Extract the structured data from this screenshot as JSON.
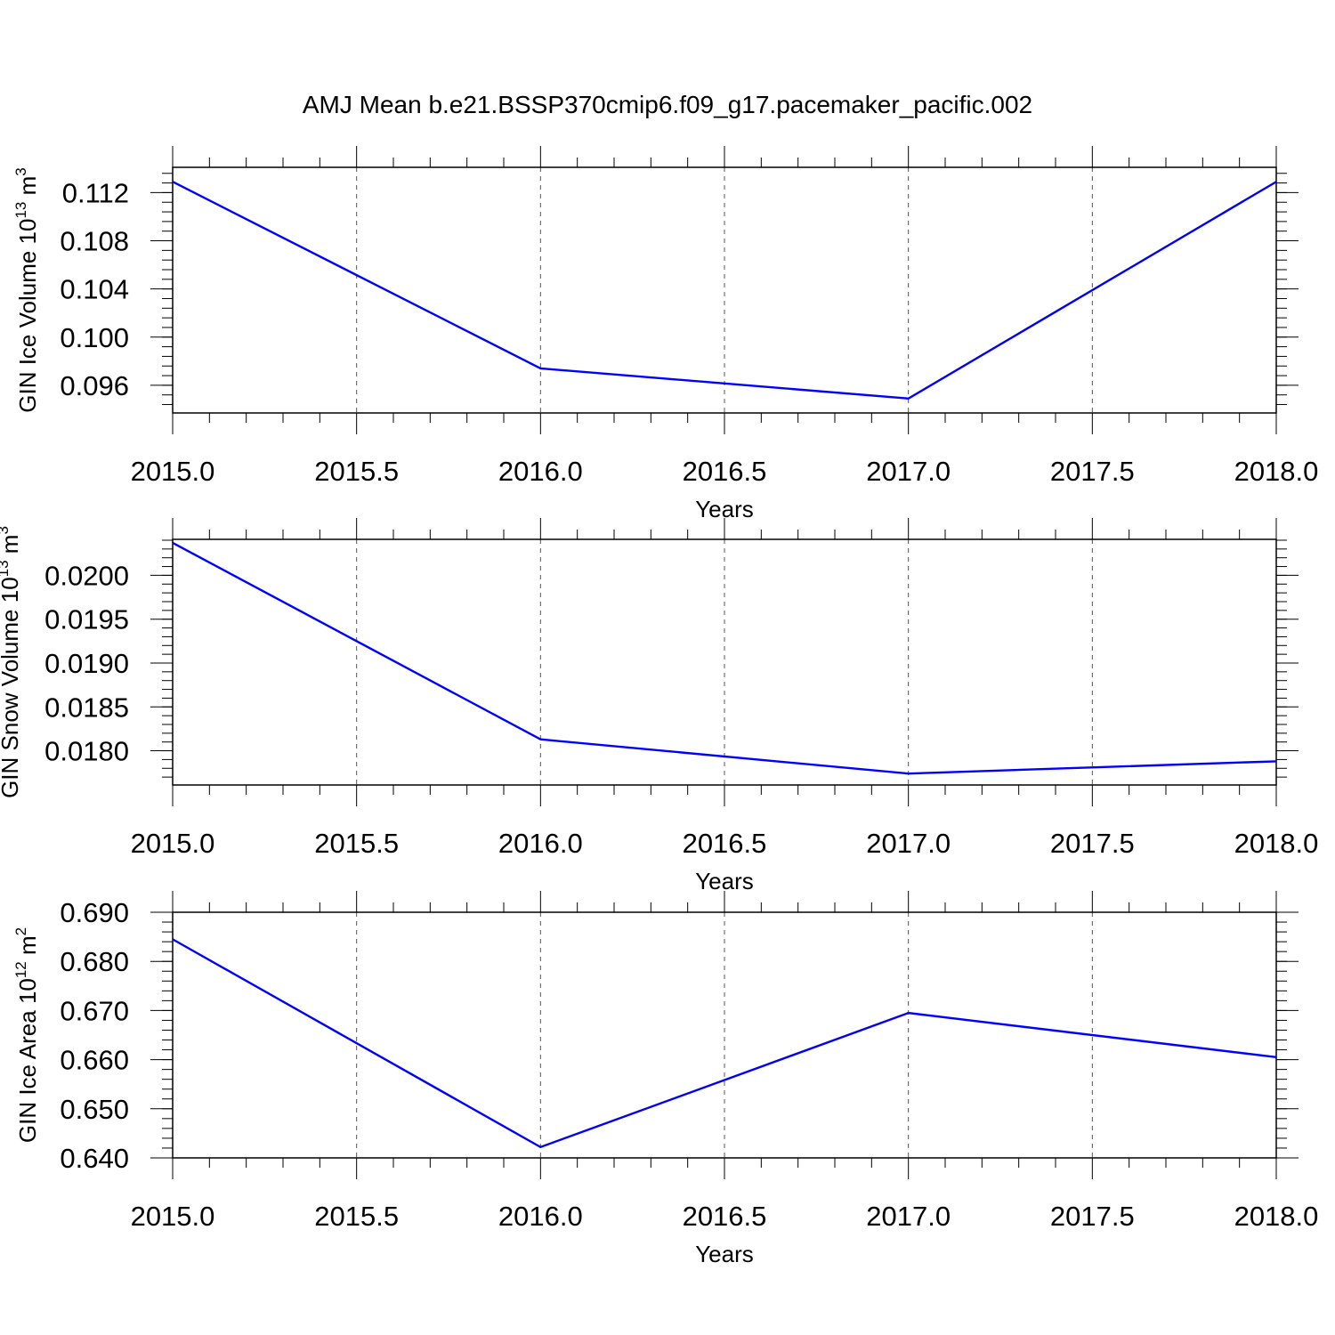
{
  "title": "AMJ Mean b.e21.BSSP370cmip6.f09_g17.pacemaker_pacific.002",
  "line_color": "#0000ff",
  "chart_data": [
    {
      "type": "line",
      "xlabel": "Years",
      "ylabel": {
        "text": "GIN Ice Volume 10",
        "sup1": "13",
        "mid": " m",
        "sup2": "3"
      },
      "xlim": [
        2015.0,
        2018.0
      ],
      "ylim": [
        0.0937,
        0.1141
      ],
      "xticks": [
        2015.0,
        2015.5,
        2016.0,
        2016.5,
        2017.0,
        2017.5,
        2018.0
      ],
      "xtick_labels": [
        "2015.0",
        "2015.5",
        "2016.0",
        "2016.5",
        "2017.0",
        "2017.5",
        "2018.0"
      ],
      "yticks": [
        0.096,
        0.1,
        0.104,
        0.108,
        0.112
      ],
      "ytick_labels": [
        "0.096",
        "0.100",
        "0.104",
        "0.108",
        "0.112"
      ],
      "y_minor_step": 0.0008,
      "grid": "vertical dashed at major x ticks",
      "x": [
        2015.0,
        2016.0,
        2017.0,
        2018.0
      ],
      "y": [
        0.1129,
        0.0974,
        0.0949,
        0.1129
      ]
    },
    {
      "type": "line",
      "xlabel": "Years",
      "ylabel": {
        "text": "GIN Snow Volume 10",
        "sup1": "13",
        "mid": " m",
        "sup2": "3"
      },
      "xlim": [
        2015.0,
        2018.0
      ],
      "ylim": [
        0.01761,
        0.02041
      ],
      "xticks": [
        2015.0,
        2015.5,
        2016.0,
        2016.5,
        2017.0,
        2017.5,
        2018.0
      ],
      "xtick_labels": [
        "2015.0",
        "2015.5",
        "2016.0",
        "2016.5",
        "2017.0",
        "2017.5",
        "2018.0"
      ],
      "yticks": [
        0.018,
        0.0185,
        0.019,
        0.0195,
        0.02
      ],
      "ytick_labels": [
        "0.0180",
        "0.0185",
        "0.0190",
        "0.0195",
        "0.0200"
      ],
      "y_minor_step": 0.0001,
      "grid": "vertical dashed at major x ticks",
      "x": [
        2015.0,
        2016.0,
        2017.0,
        2018.0
      ],
      "y": [
        0.02037,
        0.01813,
        0.01774,
        0.01788
      ]
    },
    {
      "type": "line",
      "xlabel": "Years",
      "ylabel": {
        "text": "GIN Ice Area 10",
        "sup1": "12",
        "mid": " m",
        "sup2": "2"
      },
      "xlim": [
        2015.0,
        2018.0
      ],
      "ylim": [
        0.64,
        0.69
      ],
      "xticks": [
        2015.0,
        2015.5,
        2016.0,
        2016.5,
        2017.0,
        2017.5,
        2018.0
      ],
      "xtick_labels": [
        "2015.0",
        "2015.5",
        "2016.0",
        "2016.5",
        "2017.0",
        "2017.5",
        "2018.0"
      ],
      "yticks": [
        0.64,
        0.65,
        0.66,
        0.67,
        0.68,
        0.69
      ],
      "ytick_labels": [
        "0.640",
        "0.650",
        "0.660",
        "0.670",
        "0.680",
        "0.690"
      ],
      "y_minor_step": 0.002,
      "grid": "vertical dashed at major x ticks",
      "x": [
        2015.0,
        2016.0,
        2017.0,
        2018.0
      ],
      "y": [
        0.6845,
        0.6422,
        0.6695,
        0.6605
      ]
    }
  ]
}
